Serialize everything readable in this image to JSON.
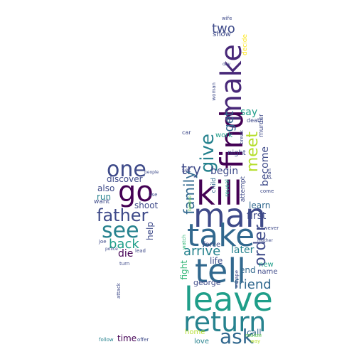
{
  "colors": {
    "background": "#ffffff",
    "palette": [
      "#440154",
      "#482878",
      "#3e4a89",
      "#31688e",
      "#26828e",
      "#1f9e89",
      "#35b779",
      "#6ece58",
      "#b5de2b",
      "#fde725"
    ]
  },
  "words": {
    "kill": "kill",
    "man": "man",
    "take": "take",
    "tell": "tell",
    "leave": "leave",
    "return": "return",
    "ask": "ask",
    "find": "find",
    "make": "make",
    "meet": "meet",
    "give": "give",
    "go": "go",
    "one": "one",
    "father": "father",
    "see": "see",
    "back": "back",
    "die": "die",
    "discover": "discover",
    "also": "also",
    "shoot": "shoot",
    "run": "run",
    "want": "want",
    "help": "help",
    "time": "time",
    "two": "two",
    "show": "show",
    "try": "try",
    "get": "get",
    "family": "family",
    "begin": "begin",
    "become": "become",
    "say": "say",
    "order": "order",
    "arrive": "arrive",
    "later": "later",
    "friend": "friend",
    "first": "first",
    "learn": "learn",
    "george": "george",
    "force": "force",
    "life": "life",
    "end": "end",
    "name": "name",
    "new": "new",
    "home": "home",
    "love": "love",
    "call": "call",
    "fight": "fight",
    "work": "work",
    "night": "night",
    "child": "child",
    "murder": "murder",
    "death": "death",
    "decide": "decide",
    "wife": "wife",
    "car": "car",
    "set": "set",
    "attempt": "attempt",
    "reveal": "reveal",
    "however": "however",
    "way": "way",
    "realize": "realize",
    "follow": "follow",
    "offer": "offer",
    "turn": "turn",
    "lead": "lead",
    "joe": "joe",
    "attack": "attack",
    "woman": "woman",
    "day": "day",
    "break": "break",
    "come": "come",
    "plan": "plan",
    "escape": "escape",
    "believe": "believe",
    "mother": "mother",
    "watch": "watch",
    "use": "use",
    "people": "people",
    "police": "police"
  }
}
